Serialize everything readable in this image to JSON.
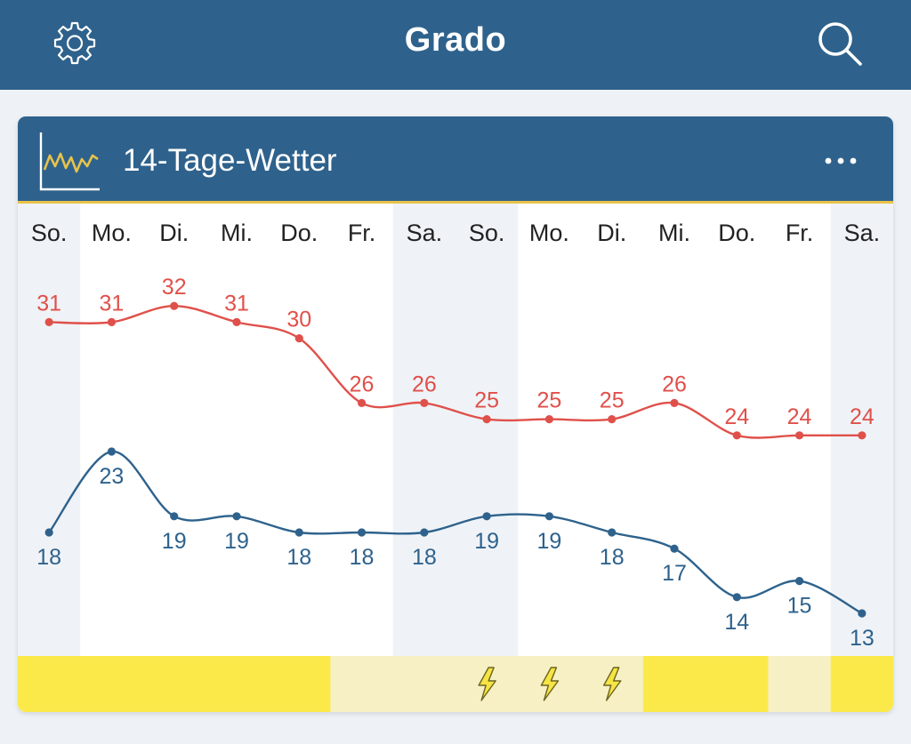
{
  "header": {
    "title": "Grado",
    "settings_icon": "gear-icon",
    "search_icon": "search-icon"
  },
  "card": {
    "title": "14-Tage-Wetter",
    "chart_icon": "line-chart-icon",
    "more_icon": "more-dots-icon"
  },
  "colors": {
    "primary": "#2e628c",
    "high_temp": "#e0504a",
    "low_temp": "#2e628c",
    "weekend_shade": "#eff3f7",
    "sun_yellow": "#fbe94a",
    "pale_yellow": "#f6f0c4",
    "accent_line": "#e8c24a"
  },
  "chart_data": {
    "type": "line",
    "categories": [
      "So.",
      "Mo.",
      "Di.",
      "Mi.",
      "Do.",
      "Fr.",
      "Sa.",
      "So.",
      "Mo.",
      "Di.",
      "Mi.",
      "Do.",
      "Fr.",
      "Sa."
    ],
    "series": [
      {
        "values": [
          31,
          31,
          32,
          31,
          30,
          26,
          26,
          25,
          25,
          25,
          26,
          24,
          24,
          24
        ]
      },
      {
        "values": [
          18,
          23,
          19,
          19,
          18,
          18,
          18,
          19,
          19,
          18,
          17,
          14,
          15,
          13
        ]
      }
    ],
    "ylim": [
      12,
      34
    ],
    "shaded_columns": [
      0,
      6,
      7,
      13
    ]
  },
  "weather_strip": [
    {
      "fill": "sun",
      "thunder": false
    },
    {
      "fill": "sun",
      "thunder": false
    },
    {
      "fill": "sun",
      "thunder": false
    },
    {
      "fill": "sun",
      "thunder": false
    },
    {
      "fill": "sun",
      "thunder": false
    },
    {
      "fill": "pale",
      "thunder": false
    },
    {
      "fill": "pale",
      "thunder": false
    },
    {
      "fill": "pale",
      "thunder": true
    },
    {
      "fill": "pale",
      "thunder": true
    },
    {
      "fill": "pale",
      "thunder": true
    },
    {
      "fill": "sun",
      "thunder": false
    },
    {
      "fill": "sun",
      "thunder": false
    },
    {
      "fill": "pale",
      "thunder": false
    },
    {
      "fill": "sun",
      "thunder": false
    }
  ],
  "thunder_icon": "lightning-icon"
}
